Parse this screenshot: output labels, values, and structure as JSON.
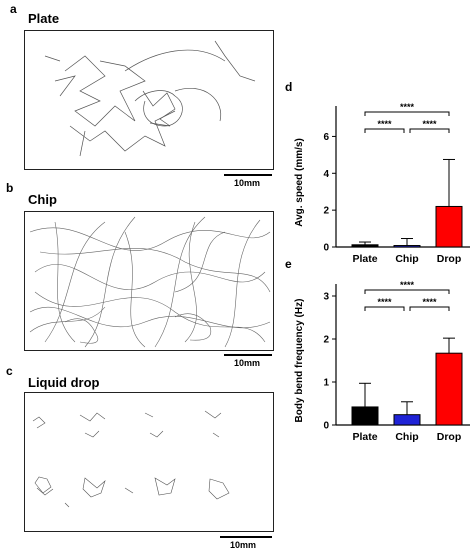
{
  "panels": {
    "a": {
      "letter": "a",
      "title": "Plate",
      "scale": "10mm"
    },
    "b": {
      "letter": "b",
      "title": "Chip",
      "scale": "10mm"
    },
    "c": {
      "letter": "c",
      "title": "Liquid drop",
      "scale": "10mm"
    },
    "d": {
      "letter": "d"
    },
    "e": {
      "letter": "e"
    }
  },
  "significance_label": "****",
  "chart_data": [
    {
      "type": "bar",
      "title": "",
      "xlabel": "",
      "ylabel": "Avg. speed (mm/s)",
      "categories": [
        "Plate",
        "Chip",
        "Drop"
      ],
      "values": [
        0.12,
        0.08,
        2.2
      ],
      "error_bars": [
        0.15,
        0.38,
        2.55
      ],
      "colors": [
        "#000000",
        "#1f23d6",
        "#ff0000"
      ],
      "ylim": [
        0,
        7
      ],
      "yticks": [
        0,
        2,
        4,
        6
      ],
      "comparisons": [
        {
          "from": 0,
          "to": 2,
          "label": "****"
        },
        {
          "from": 0,
          "to": 1,
          "label": "****"
        },
        {
          "from": 1,
          "to": 2,
          "label": "****"
        }
      ]
    },
    {
      "type": "bar",
      "title": "",
      "xlabel": "",
      "ylabel": "Body bend frequency (Hz)",
      "categories": [
        "Plate",
        "Chip",
        "Drop"
      ],
      "values": [
        0.42,
        0.24,
        1.67
      ],
      "error_bars": [
        0.55,
        0.3,
        0.35
      ],
      "colors": [
        "#000000",
        "#1f23d6",
        "#ff0000"
      ],
      "ylim": [
        0,
        3
      ],
      "yticks": [
        0,
        1,
        2,
        3
      ],
      "comparisons": [
        {
          "from": 0,
          "to": 2,
          "label": "****"
        },
        {
          "from": 0,
          "to": 1,
          "label": "****"
        },
        {
          "from": 1,
          "to": 2,
          "label": "****"
        }
      ]
    }
  ]
}
